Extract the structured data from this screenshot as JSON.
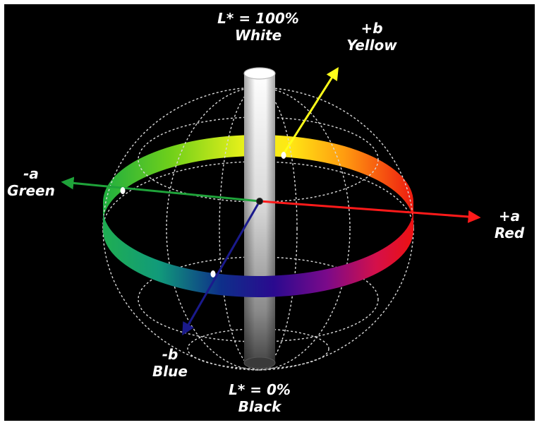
{
  "labels": {
    "white": {
      "value": "L* = 100%",
      "name": "White"
    },
    "black": {
      "value": "L* = 0%",
      "name": "Black"
    },
    "yellow": {
      "axis": "+b",
      "name": "Yellow"
    },
    "blue": {
      "axis": "-b",
      "name": "Blue"
    },
    "green": {
      "axis": "-a",
      "name": "Green"
    },
    "red": {
      "axis": "+a",
      "name": "Red"
    }
  },
  "colors": {
    "background": "#000000",
    "text": "#ffffff",
    "axis_red": "#ff1a1a",
    "axis_green": "#1fa33a",
    "axis_yellow": "#ffff1a",
    "axis_blue": "#1a1a8c",
    "wireframe": "#d9d9d9"
  }
}
